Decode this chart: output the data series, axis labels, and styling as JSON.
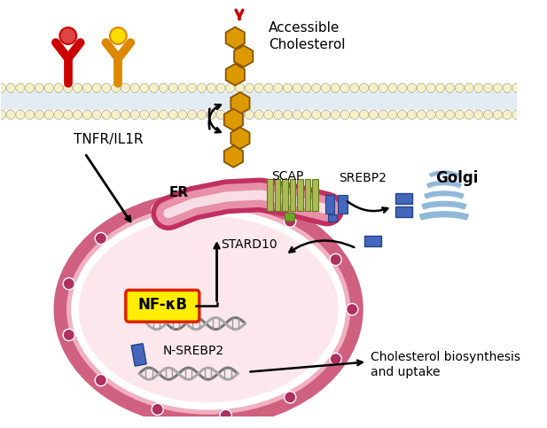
{
  "bg_color": "#ffffff",
  "membrane_color": "#f5f0c8",
  "membrane_tail_color": "#c8d8e8",
  "nucleus_fill": "#f8d0d8",
  "nucleus_outer_edge": "#d06080",
  "nucleus_inner_fill": "#fce8ec",
  "nucleus_spot_color": "#b03060",
  "er_color": "#c03060",
  "er_fill": "#d87090",
  "golgi_color": "#90b8d8",
  "receptor1_color": "#cc0000",
  "receptor1_ball_color": "#dd4444",
  "receptor2_color": "#dd8800",
  "receptor2_ball_color": "#ffdd00",
  "cholesterol_color": "#dd9900",
  "cholesterol_edge": "#885500",
  "scap_color": "#aabb55",
  "scap_edge": "#667722",
  "srebp2_color": "#4466bb",
  "srebp2_edge": "#224488",
  "nfkb_box_color": "#ffee00",
  "nfkb_box_edge": "#dd2200",
  "dna_color1": "#888888",
  "dna_color2": "#aaaaaa",
  "text_color": "#000000",
  "label_tnfr": "TNFR/IL1R",
  "label_accessible": "Accessible",
  "label_cholesterol": "Cholesterol",
  "label_er": "ER",
  "label_scap": "SCAP",
  "label_srebp2": "SREBP2",
  "label_golgi": "Golgi",
  "label_stard10": "STARD10",
  "label_nfkb": "NF-κB",
  "label_nsrebp2": "N-SREBP2",
  "label_biosynthesis": "Cholesterol biosynthesis",
  "label_uptake": "and uptake",
  "figw": 6.17,
  "figh": 4.83
}
